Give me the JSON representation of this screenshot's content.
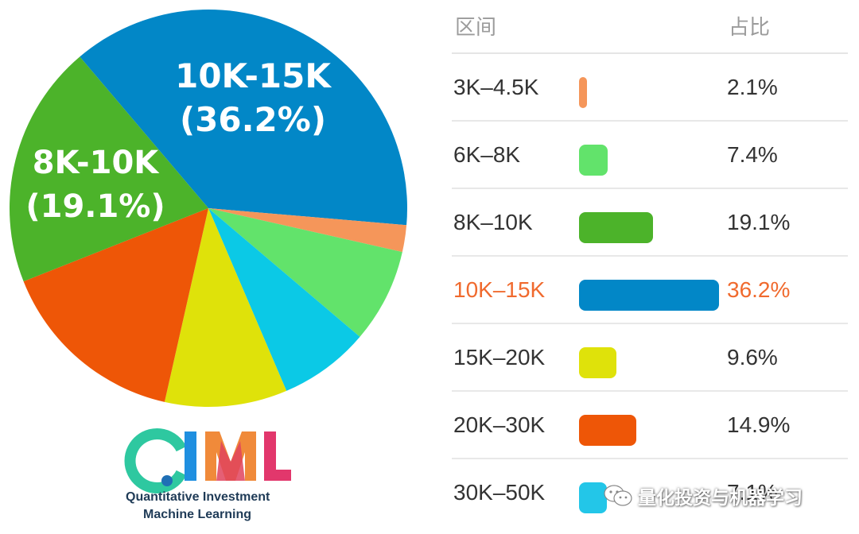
{
  "chart_data": {
    "type": "pie",
    "slices": [
      {
        "label": "10K-15K",
        "value": 36.2,
        "color": "#0287c7"
      },
      {
        "label": "3K-4.5K",
        "value": 2.1,
        "color": "#f5965a"
      },
      {
        "label": "6K-8K",
        "value": 7.4,
        "color": "#62e36b"
      },
      {
        "label": "30K-50K",
        "value": 7.1,
        "color": "#0bc9e6"
      },
      {
        "label": "15K-20K",
        "value": 9.6,
        "color": "#dfe20a"
      },
      {
        "label": "20K-30K",
        "value": 14.9,
        "color": "#ee5607"
      },
      {
        "label": "8K-10K",
        "value": 19.1,
        "color": "#4cb32a"
      }
    ],
    "pie_labels": [
      {
        "line1": "10K-15K",
        "line2": "(36.2%)"
      },
      {
        "line1": "8K-10K",
        "line2": "(19.1%)"
      }
    ]
  },
  "table": {
    "header_range": "区间",
    "header_share": "占比",
    "max_value": 36.2,
    "rows": [
      {
        "label": "3K–4.5K",
        "value": 2.1,
        "pct": "2.1%",
        "color": "#f5965a",
        "highlight": false
      },
      {
        "label": "6K–8K",
        "value": 7.4,
        "pct": "7.4%",
        "color": "#62e36b",
        "highlight": false
      },
      {
        "label": "8K–10K",
        "value": 19.1,
        "pct": "19.1%",
        "color": "#4cb32a",
        "highlight": false
      },
      {
        "label": "10K–15K",
        "value": 36.2,
        "pct": "36.2%",
        "color": "#0287c7",
        "highlight": true
      },
      {
        "label": "15K–20K",
        "value": 9.6,
        "pct": "9.6%",
        "color": "#dfe20a",
        "highlight": false
      },
      {
        "label": "20K–30K",
        "value": 14.9,
        "pct": "14.9%",
        "color": "#ee5607",
        "highlight": false
      },
      {
        "label": "30K–50K",
        "value": 7.1,
        "pct": "7.1%",
        "color": "#23c6e8",
        "highlight": false
      }
    ]
  },
  "logo": {
    "text": "QIML",
    "line1": "Quantitative Investment",
    "line2": "Machine Learning"
  },
  "watermark": {
    "text": "量化投资与机器学习",
    "icon": "wechat-icon"
  }
}
